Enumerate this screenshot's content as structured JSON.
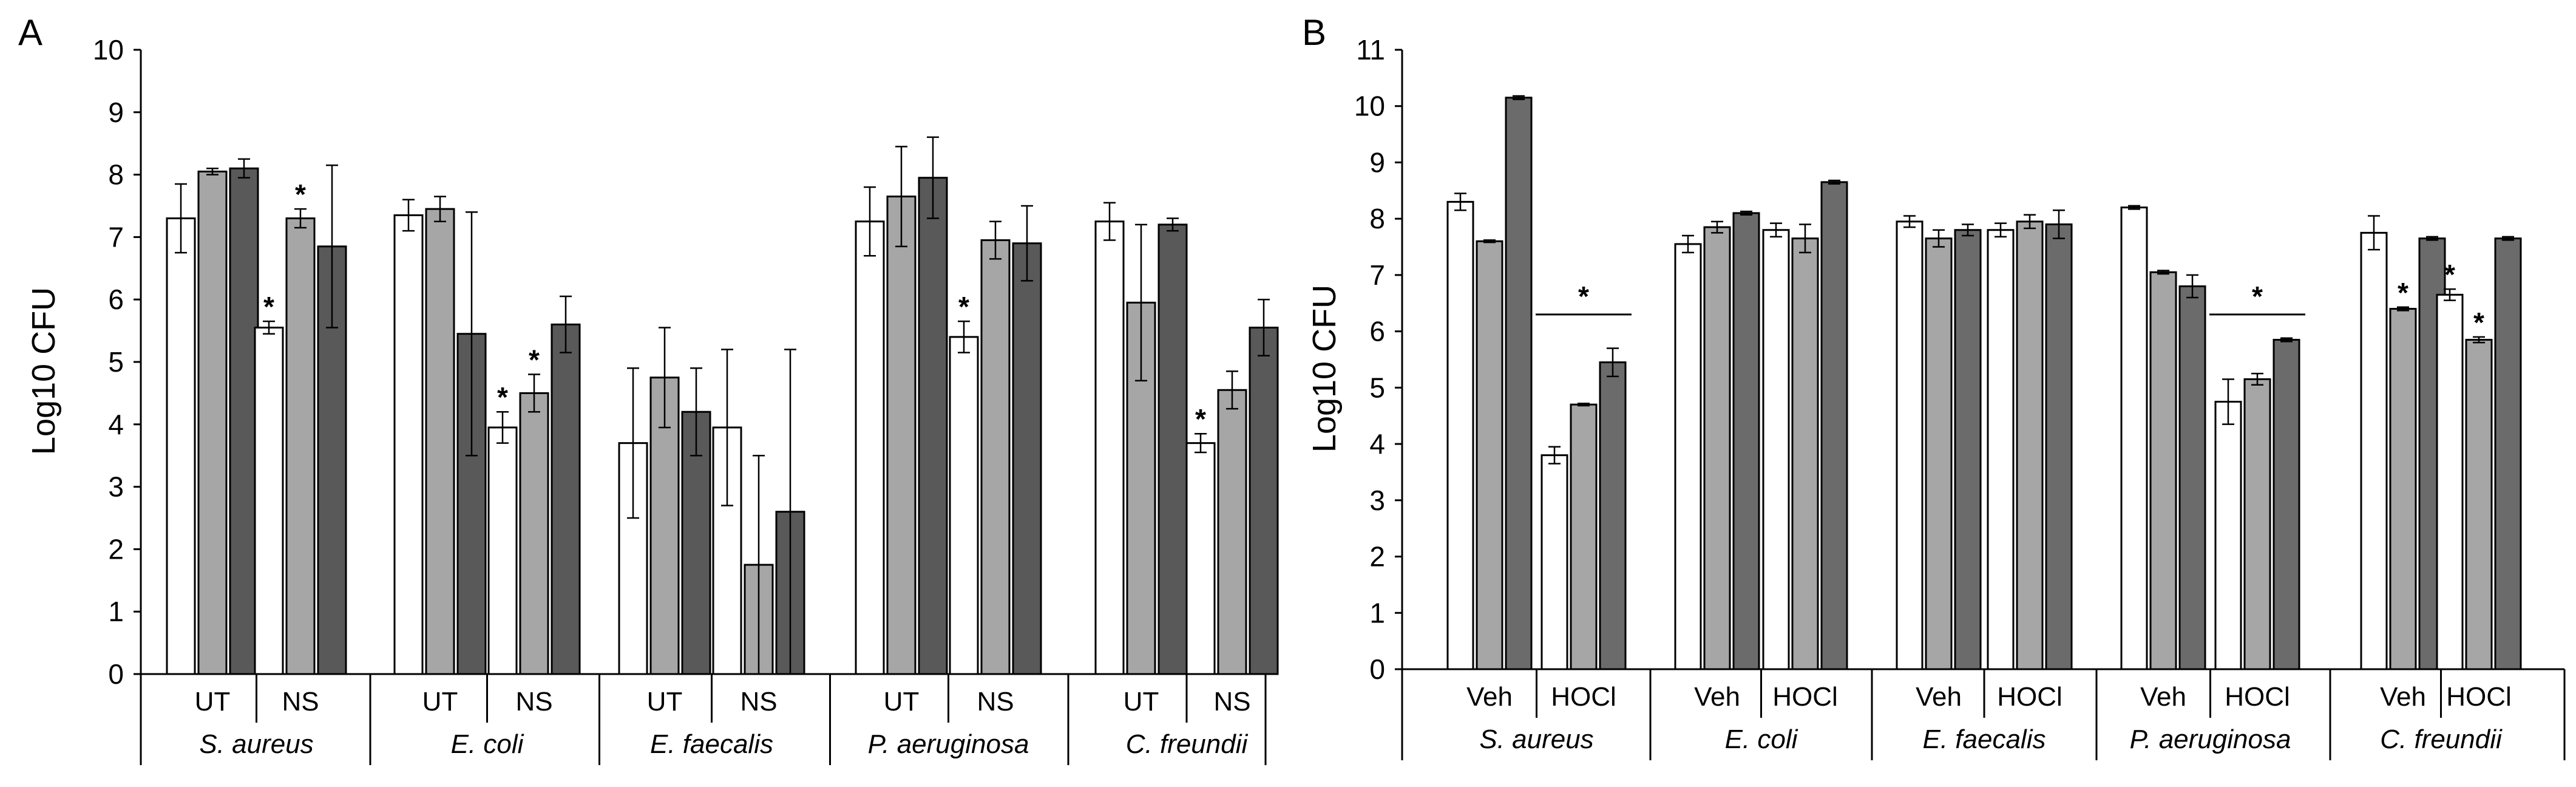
{
  "chart_data": [
    {
      "type": "bar",
      "panel": "A",
      "title": "",
      "xlabel": "",
      "ylabel": "Log10 CFU",
      "ylim": [
        0,
        10
      ],
      "yticks": [
        "0",
        "1",
        "2",
        "3",
        "4",
        "5",
        "6",
        "7",
        "8",
        "9",
        "10"
      ],
      "grid": false,
      "bar_colors": [
        "#ffffff",
        "#a6a6a6",
        "#595959"
      ],
      "species": [
        "S. aureus",
        "E. coli",
        "E. faecalis",
        "P. aeruginosa",
        "C. freundii"
      ],
      "groups": [
        {
          "species": "S. aureus",
          "treatment": "UT",
          "values": [
            7.3,
            8.05,
            8.1
          ],
          "errors": [
            0.55,
            0.05,
            0.15
          ],
          "stars": [
            false,
            false,
            false
          ]
        },
        {
          "species": "S. aureus",
          "treatment": "NS",
          "values": [
            5.55,
            7.3,
            6.85
          ],
          "errors": [
            0.1,
            0.15,
            1.3
          ],
          "stars": [
            true,
            true,
            false
          ]
        },
        {
          "species": "E. coli",
          "treatment": "UT",
          "values": [
            7.35,
            7.45,
            5.45
          ],
          "errors": [
            0.25,
            0.2,
            1.95
          ],
          "stars": [
            false,
            false,
            false
          ]
        },
        {
          "species": "E. coli",
          "treatment": "NS",
          "values": [
            3.95,
            4.5,
            5.6
          ],
          "errors": [
            0.25,
            0.3,
            0.45
          ],
          "stars": [
            true,
            true,
            false
          ]
        },
        {
          "species": "E. faecalis",
          "treatment": "UT",
          "values": [
            3.7,
            4.75,
            4.2
          ],
          "errors": [
            1.2,
            0.8,
            0.7
          ],
          "stars": [
            false,
            false,
            false
          ]
        },
        {
          "species": "E. faecalis",
          "treatment": "NS",
          "values": [
            3.95,
            1.75,
            2.6
          ],
          "errors": [
            1.25,
            1.75,
            2.6
          ],
          "stars": [
            false,
            false,
            false
          ]
        },
        {
          "species": "P. aeruginosa",
          "treatment": "UT",
          "values": [
            7.25,
            7.65,
            7.95
          ],
          "errors": [
            0.55,
            0.8,
            0.65
          ],
          "stars": [
            false,
            false,
            false
          ]
        },
        {
          "species": "P. aeruginosa",
          "treatment": "NS",
          "values": [
            5.4,
            6.95,
            6.9
          ],
          "errors": [
            0.25,
            0.3,
            0.6
          ],
          "stars": [
            true,
            false,
            false
          ]
        },
        {
          "species": "C. freundii",
          "treatment": "UT",
          "values": [
            7.25,
            5.95,
            7.2
          ],
          "errors": [
            0.3,
            1.25,
            0.1
          ],
          "stars": [
            false,
            false,
            false
          ]
        },
        {
          "species": "C. freundii",
          "treatment": "NS",
          "values": [
            3.7,
            4.55,
            5.55
          ],
          "errors": [
            0.15,
            0.3,
            0.45
          ],
          "stars": [
            true,
            false,
            false
          ]
        }
      ]
    },
    {
      "type": "bar",
      "panel": "B",
      "title": "",
      "xlabel": "",
      "ylabel": "Log10 CFU",
      "ylim": [
        0,
        11
      ],
      "yticks": [
        "0",
        "1",
        "2",
        "3",
        "4",
        "5",
        "6",
        "7",
        "8",
        "9",
        "10",
        "11"
      ],
      "grid": false,
      "bar_colors": [
        "#ffffff",
        "#a6a6a6",
        "#6b6b6b"
      ],
      "species": [
        "S. aureus",
        "E. coli",
        "E. faecalis",
        "P. aeruginosa",
        "C. freundii"
      ],
      "groups": [
        {
          "species": "S. aureus",
          "treatment": "Veh",
          "values": [
            8.3,
            7.6,
            10.15
          ],
          "errors": [
            0.15,
            0.02,
            0.03
          ],
          "stars": [
            false,
            false,
            false
          ]
        },
        {
          "species": "S. aureus",
          "treatment": "HOCl",
          "values": [
            3.8,
            4.7,
            5.45
          ],
          "errors": [
            0.15,
            0.02,
            0.25
          ],
          "stars": [
            false,
            false,
            false
          ]
        },
        {
          "species": "E. coli",
          "treatment": "Veh",
          "values": [
            7.55,
            7.85,
            8.1
          ],
          "errors": [
            0.15,
            0.1,
            0.03
          ],
          "stars": [
            false,
            false,
            false
          ]
        },
        {
          "species": "E. coli",
          "treatment": "HOCl",
          "values": [
            7.8,
            7.65,
            8.65
          ],
          "errors": [
            0.12,
            0.25,
            0.03
          ],
          "stars": [
            false,
            false,
            false
          ]
        },
        {
          "species": "E. faecalis",
          "treatment": "Veh",
          "values": [
            7.95,
            7.65,
            7.8
          ],
          "errors": [
            0.1,
            0.15,
            0.1
          ],
          "stars": [
            false,
            false,
            false
          ]
        },
        {
          "species": "E. faecalis",
          "treatment": "HOCl",
          "values": [
            7.8,
            7.95,
            7.9
          ],
          "errors": [
            0.12,
            0.12,
            0.25
          ],
          "stars": [
            false,
            false,
            false
          ]
        },
        {
          "species": "P. aeruginosa",
          "treatment": "Veh",
          "values": [
            8.2,
            7.05,
            6.8
          ],
          "errors": [
            0.03,
            0.03,
            0.2
          ],
          "stars": [
            false,
            false,
            false
          ]
        },
        {
          "species": "P. aeruginosa",
          "treatment": "HOCl",
          "values": [
            4.75,
            5.15,
            5.85
          ],
          "errors": [
            0.4,
            0.1,
            0.03
          ],
          "stars": [
            false,
            false,
            false
          ]
        },
        {
          "species": "C. freundii",
          "treatment": "Veh",
          "values": [
            7.75,
            6.4,
            7.65
          ],
          "errors": [
            0.3,
            0.03,
            0.03
          ],
          "stars": [
            false,
            true,
            false
          ]
        },
        {
          "species": "C. freundii",
          "treatment": "HOCl",
          "values": [
            6.65,
            5.85,
            7.65
          ],
          "errors": [
            0.1,
            0.05,
            0.03
          ],
          "stars": [
            true,
            true,
            false
          ]
        }
      ],
      "significance_bars": [
        {
          "species": "S. aureus",
          "label": "*",
          "y": 6.3
        },
        {
          "species": "P. aeruginosa",
          "label": "*",
          "y": 6.3
        }
      ]
    }
  ]
}
